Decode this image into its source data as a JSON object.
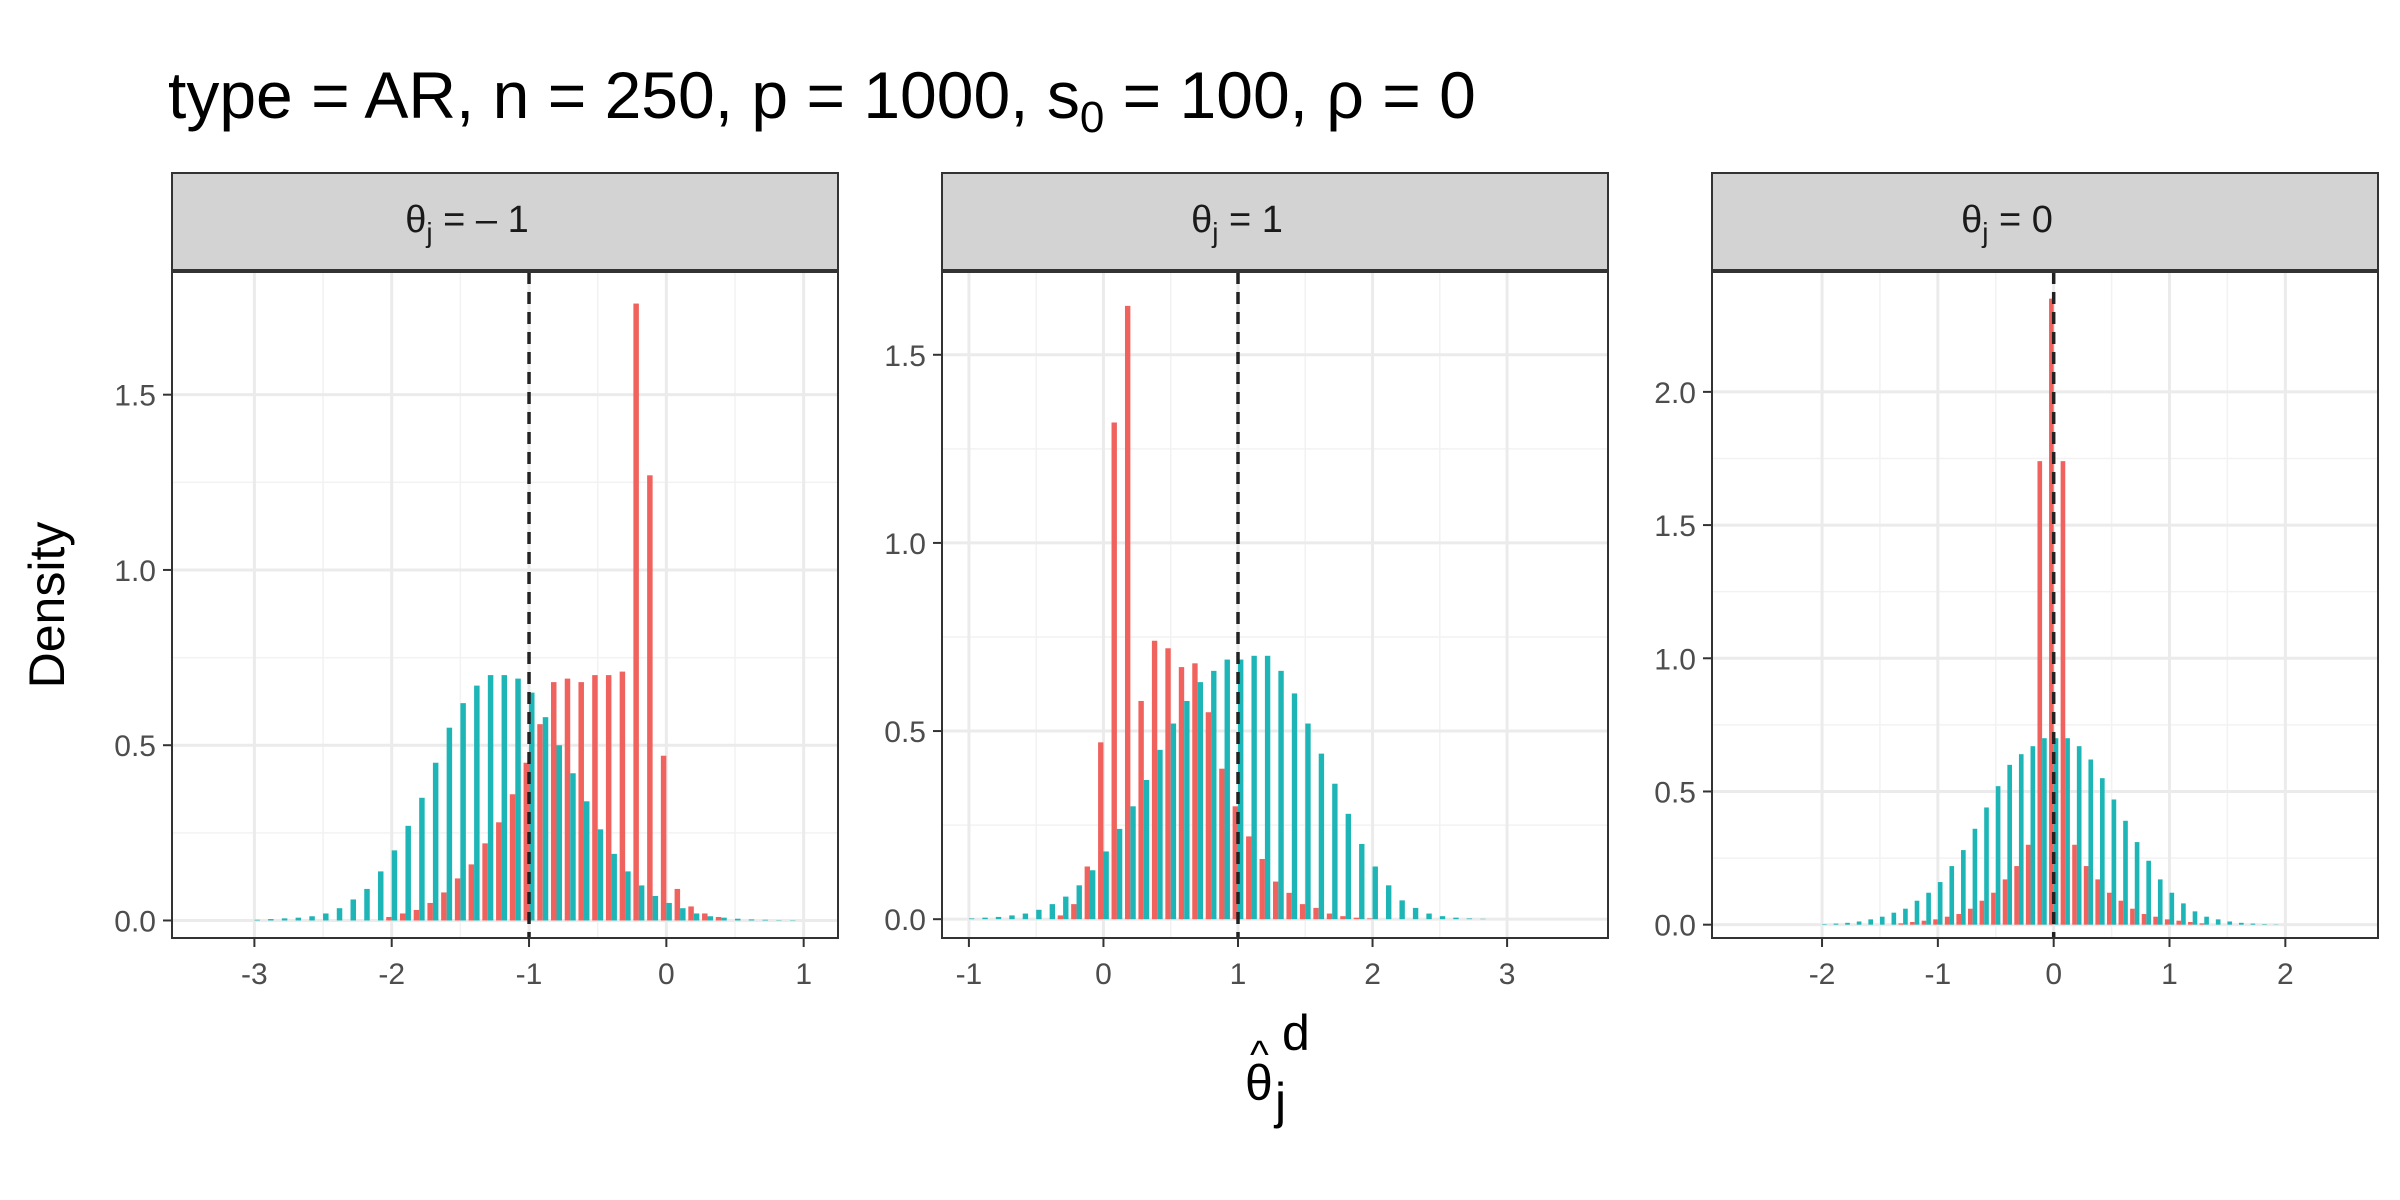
{
  "chart_data": {
    "type": "bar",
    "title": {
      "parts": [
        {
          "t": "type = AR, n = 250, p = 1000, s"
        },
        {
          "t": "0",
          "sub": true
        },
        {
          "t": " = 100, ρ = 0"
        }
      ]
    },
    "xlabel": {
      "base": "θ",
      "hat": "^",
      "sup": "d",
      "sub": "j"
    },
    "ylabel": "Density",
    "grid": true,
    "legend": "none",
    "colors": {
      "series_a": "#F0625E",
      "series_b": "#1EB5B7",
      "reference_line": "#222222",
      "strip_fill": "#D3D3D3"
    },
    "facets": [
      {
        "strip": {
          "var": "θ",
          "sub": "j",
          "rest": " = – 1"
        },
        "reference": -1,
        "xlim": [
          -3.6,
          1.25
        ],
        "ylim": [
          -0.05,
          1.85
        ],
        "x_ticks": [
          -3,
          -2,
          -1,
          0,
          1
        ],
        "x_tick_labels": [
          "-3",
          "-2",
          "-1",
          "0",
          "1"
        ],
        "y_ticks": [
          0,
          0.5,
          1.0,
          1.5
        ],
        "y_tick_labels": [
          "0.0",
          "0.5",
          "1.0",
          "1.5"
        ],
        "bin_centers": [
          -3.0,
          -2.9,
          -2.8,
          -2.7,
          -2.6,
          -2.5,
          -2.4,
          -2.3,
          -2.2,
          -2.1,
          -2.0,
          -1.9,
          -1.8,
          -1.7,
          -1.6,
          -1.5,
          -1.4,
          -1.3,
          -1.2,
          -1.1,
          -1.0,
          -0.9,
          -0.8,
          -0.7,
          -0.6,
          -0.5,
          -0.4,
          -0.3,
          -0.2,
          -0.1,
          0.0,
          0.1,
          0.2,
          0.3,
          0.4,
          0.5,
          0.6,
          0.7,
          0.8,
          0.9,
          1.0
        ],
        "series": [
          {
            "values": [
              0,
              0,
              0,
              0,
              0,
              0,
              0,
              0,
              0,
              0,
              0.01,
              0.02,
              0.03,
              0.05,
              0.08,
              0.12,
              0.16,
              0.22,
              0.28,
              0.36,
              0.45,
              0.56,
              0.68,
              0.69,
              0.68,
              0.7,
              0.7,
              0.71,
              1.76,
              1.27,
              0.47,
              0.09,
              0.04,
              0.02,
              0.01,
              0,
              0,
              0,
              0,
              0,
              0
            ]
          },
          {
            "values": [
              0.002,
              0.004,
              0.006,
              0.008,
              0.012,
              0.02,
              0.035,
              0.06,
              0.09,
              0.14,
              0.2,
              0.27,
              0.35,
              0.45,
              0.55,
              0.62,
              0.67,
              0.7,
              0.7,
              0.69,
              0.65,
              0.58,
              0.5,
              0.42,
              0.34,
              0.26,
              0.19,
              0.14,
              0.1,
              0.07,
              0.05,
              0.035,
              0.02,
              0.012,
              0.008,
              0.005,
              0.003,
              0.002,
              0.001,
              0.001,
              0
            ]
          }
        ]
      },
      {
        "strip": {
          "var": "θ",
          "sub": "j",
          "rest": " = 1"
        },
        "reference": 1,
        "xlim": [
          -1.2,
          3.75
        ],
        "ylim": [
          -0.05,
          1.72
        ],
        "x_ticks": [
          -1,
          0,
          1,
          2,
          3
        ],
        "x_tick_labels": [
          "-1",
          "0",
          "1",
          "2",
          "3"
        ],
        "y_ticks": [
          0,
          0.5,
          1.0,
          1.5
        ],
        "y_tick_labels": [
          "0.0",
          "0.5",
          "1.0",
          "1.5"
        ],
        "bin_centers": [
          -1.0,
          -0.9,
          -0.8,
          -0.7,
          -0.6,
          -0.5,
          -0.4,
          -0.3,
          -0.2,
          -0.1,
          0.0,
          0.1,
          0.2,
          0.3,
          0.4,
          0.5,
          0.6,
          0.7,
          0.8,
          0.9,
          1.0,
          1.1,
          1.2,
          1.3,
          1.4,
          1.5,
          1.6,
          1.7,
          1.8,
          1.9,
          2.0,
          2.1,
          2.2,
          2.3,
          2.4,
          2.5,
          2.6,
          2.7,
          2.8,
          2.9,
          3.0
        ],
        "series": [
          {
            "values": [
              0,
              0,
              0,
              0,
              0,
              0,
              0,
              0.01,
              0.04,
              0.14,
              0.47,
              1.32,
              1.63,
              0.58,
              0.74,
              0.72,
              0.67,
              0.68,
              0.55,
              0.4,
              0.3,
              0.22,
              0.16,
              0.1,
              0.07,
              0.04,
              0.03,
              0.015,
              0.008,
              0.004,
              0.002,
              0,
              0,
              0,
              0,
              0,
              0,
              0,
              0,
              0,
              0
            ]
          },
          {
            "values": [
              0.002,
              0.004,
              0.006,
              0.01,
              0.015,
              0.025,
              0.04,
              0.06,
              0.09,
              0.13,
              0.18,
              0.24,
              0.3,
              0.37,
              0.45,
              0.52,
              0.58,
              0.63,
              0.66,
              0.69,
              0.69,
              0.7,
              0.7,
              0.66,
              0.6,
              0.52,
              0.44,
              0.36,
              0.28,
              0.2,
              0.14,
              0.09,
              0.05,
              0.03,
              0.015,
              0.008,
              0.004,
              0.002,
              0.001,
              0,
              0
            ]
          }
        ]
      },
      {
        "strip": {
          "var": "θ",
          "sub": "j",
          "rest": " = 0"
        },
        "reference": 0,
        "xlim": [
          -2.95,
          2.8
        ],
        "ylim": [
          -0.05,
          2.45
        ],
        "x_ticks": [
          -2,
          -1,
          0,
          1,
          2
        ],
        "x_tick_labels": [
          "-2",
          "-1",
          "0",
          "1",
          "2"
        ],
        "y_ticks": [
          0,
          0.5,
          1.0,
          1.5,
          2.0
        ],
        "y_tick_labels": [
          "0.0",
          "0.5",
          "1.0",
          "1.5",
          "2.0"
        ],
        "bin_centers": [
          -2.0,
          -1.9,
          -1.8,
          -1.7,
          -1.6,
          -1.5,
          -1.4,
          -1.3,
          -1.2,
          -1.1,
          -1.0,
          -0.9,
          -0.8,
          -0.7,
          -0.6,
          -0.5,
          -0.4,
          -0.3,
          -0.2,
          -0.1,
          0.0,
          0.1,
          0.2,
          0.3,
          0.4,
          0.5,
          0.6,
          0.7,
          0.8,
          0.9,
          1.0,
          1.1,
          1.2,
          1.3,
          1.4,
          1.5,
          1.6,
          1.7,
          1.8,
          1.9,
          2.0
        ],
        "series": [
          {
            "values": [
              0,
              0,
              0,
              0,
              0,
              0,
              0,
              0.005,
              0.01,
              0.015,
              0.02,
              0.03,
              0.04,
              0.06,
              0.09,
              0.12,
              0.17,
              0.22,
              0.3,
              1.74,
              2.35,
              1.74,
              0.3,
              0.22,
              0.17,
              0.12,
              0.09,
              0.06,
              0.04,
              0.03,
              0.02,
              0.015,
              0.01,
              0.005,
              0,
              0,
              0,
              0,
              0,
              0,
              0
            ]
          },
          {
            "values": [
              0.002,
              0.004,
              0.007,
              0.012,
              0.02,
              0.03,
              0.045,
              0.06,
              0.09,
              0.12,
              0.16,
              0.22,
              0.28,
              0.36,
              0.44,
              0.52,
              0.6,
              0.64,
              0.67,
              0.7,
              0.7,
              0.7,
              0.67,
              0.62,
              0.55,
              0.47,
              0.39,
              0.31,
              0.24,
              0.17,
              0.12,
              0.08,
              0.05,
              0.03,
              0.02,
              0.012,
              0.007,
              0.004,
              0.002,
              0.001,
              0
            ]
          }
        ]
      }
    ]
  }
}
